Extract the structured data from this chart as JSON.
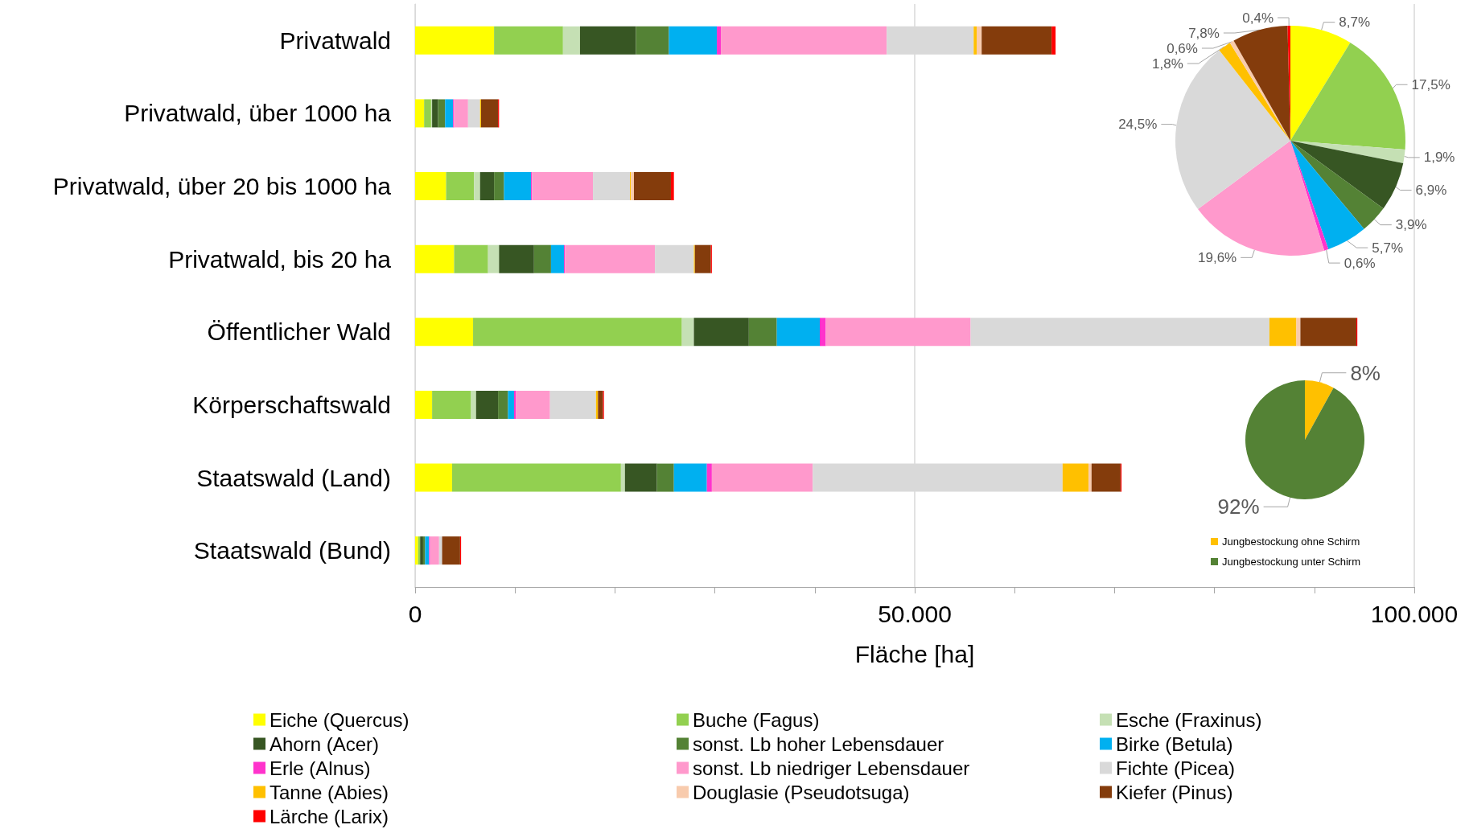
{
  "chart_data": [
    {
      "type": "bar",
      "orientation": "horizontal",
      "stacked": true,
      "xlabel": "Fläche [ha]",
      "categories": [
        "Privatwald",
        "Privatwald, über 1000 ha",
        "Privatwald, über 20 bis 1000 ha",
        "Privatwald, bis 20 ha",
        "Öffentlicher Wald",
        "Körperschaftswald",
        "Staatswald (Land)",
        "Staatswald (Bund)"
      ],
      "xlim": [
        0,
        100000
      ],
      "xticks": [
        0,
        {
          "value": 50000,
          "label": "50.000"
        },
        {
          "value": 100000,
          "label": "100.000"
        }
      ],
      "grid": "x",
      "legend": "bottom",
      "series": [
        {
          "name": "Eiche (Quercus)",
          "color": "#ffff00",
          "values": [
            7900,
            900,
            3100,
            3900,
            5800,
            1700,
            3700,
            300
          ]
        },
        {
          "name": "Buche (Fagus)",
          "color": "#92d050",
          "values": [
            6900,
            700,
            2800,
            3400,
            20900,
            3900,
            16900,
            200
          ]
        },
        {
          "name": "Esche (Fraxinus)",
          "color": "#c5e0b4",
          "values": [
            1700,
            100,
            600,
            1100,
            1200,
            500,
            400,
            null
          ]
        },
        {
          "name": "Ahorn (Acer)",
          "color": "#375623",
          "values": [
            5600,
            600,
            1400,
            3500,
            5500,
            2200,
            3200,
            300
          ]
        },
        {
          "name": "sonst. Lb hoher Lebensdauer",
          "color": "#548235",
          "values": [
            3300,
            700,
            1000,
            1700,
            2800,
            1000,
            1700,
            200
          ]
        },
        {
          "name": "Birke (Betula)",
          "color": "#00b0f0",
          "values": [
            4800,
            800,
            2700,
            1300,
            4300,
            600,
            3300,
            400
          ]
        },
        {
          "name": "Erle (Alnus)",
          "color": "#ff33cc",
          "values": [
            400,
            100,
            100,
            100,
            600,
            200,
            500,
            100
          ]
        },
        {
          "name": "sonst. Lb niedriger Lebensdauer",
          "color": "#ff99cc",
          "values": [
            16600,
            1400,
            6100,
            9000,
            14500,
            3400,
            10100,
            900
          ]
        },
        {
          "name": "Fichte (Picea)",
          "color": "#d9d9d9",
          "values": [
            8700,
            1200,
            3700,
            3900,
            29900,
            4600,
            25000,
            300
          ]
        },
        {
          "name": "Tanne (Abies)",
          "color": "#ffc000",
          "values": [
            300,
            100,
            100,
            100,
            2700,
            200,
            2600,
            0
          ]
        },
        {
          "name": "Douglasie (Pseudotsuga)",
          "color": "#f8cbad",
          "values": [
            500,
            0,
            300,
            null,
            400,
            null,
            300,
            0
          ]
        },
        {
          "name": "Kiefer (Pinus)",
          "color": "#843c0c",
          "values": [
            7000,
            1700,
            3700,
            1600,
            5600,
            500,
            2900,
            1800
          ]
        },
        {
          "name": "Lärche (Larix)",
          "color": "#ff0000",
          "values": [
            400,
            100,
            300,
            100,
            100,
            100,
            100,
            100
          ]
        }
      ]
    },
    {
      "type": "pie",
      "legend": false,
      "categories": [
        null,
        null,
        null,
        null,
        null,
        null,
        null,
        null,
        null,
        null,
        null,
        null,
        null
      ],
      "values": [
        8.7,
        17.5,
        1.9,
        6.9,
        3.9,
        5.7,
        0.6,
        19.6,
        24.5,
        1.8,
        0.6,
        7.8,
        0.4
      ],
      "colors": [
        "#ffff00",
        "#92d050",
        "#c5e0b4",
        "#375623",
        "#548235",
        "#00b0f0",
        "#ff33cc",
        "#ff99cc",
        "#d9d9d9",
        "#ffc000",
        "#f8cbad",
        "#843c0c",
        "#ff0000"
      ],
      "value_labels": [
        "8,7%",
        "17,5%",
        "1,9%",
        "6,9%",
        "3,9%",
        "5,7%",
        "0,6%",
        "19,6%",
        "24,5%",
        "1,8%",
        "0,6%",
        "7,8%",
        "0,4%"
      ]
    },
    {
      "type": "pie",
      "legend": "bottom",
      "categories": [
        "Jungbestockung ohne Schirm",
        "Jungbestockung unter Schirm"
      ],
      "values": [
        8,
        92
      ],
      "colors": [
        "#ffc000",
        "#548235"
      ],
      "value_labels": [
        "8%",
        "92%"
      ]
    }
  ]
}
